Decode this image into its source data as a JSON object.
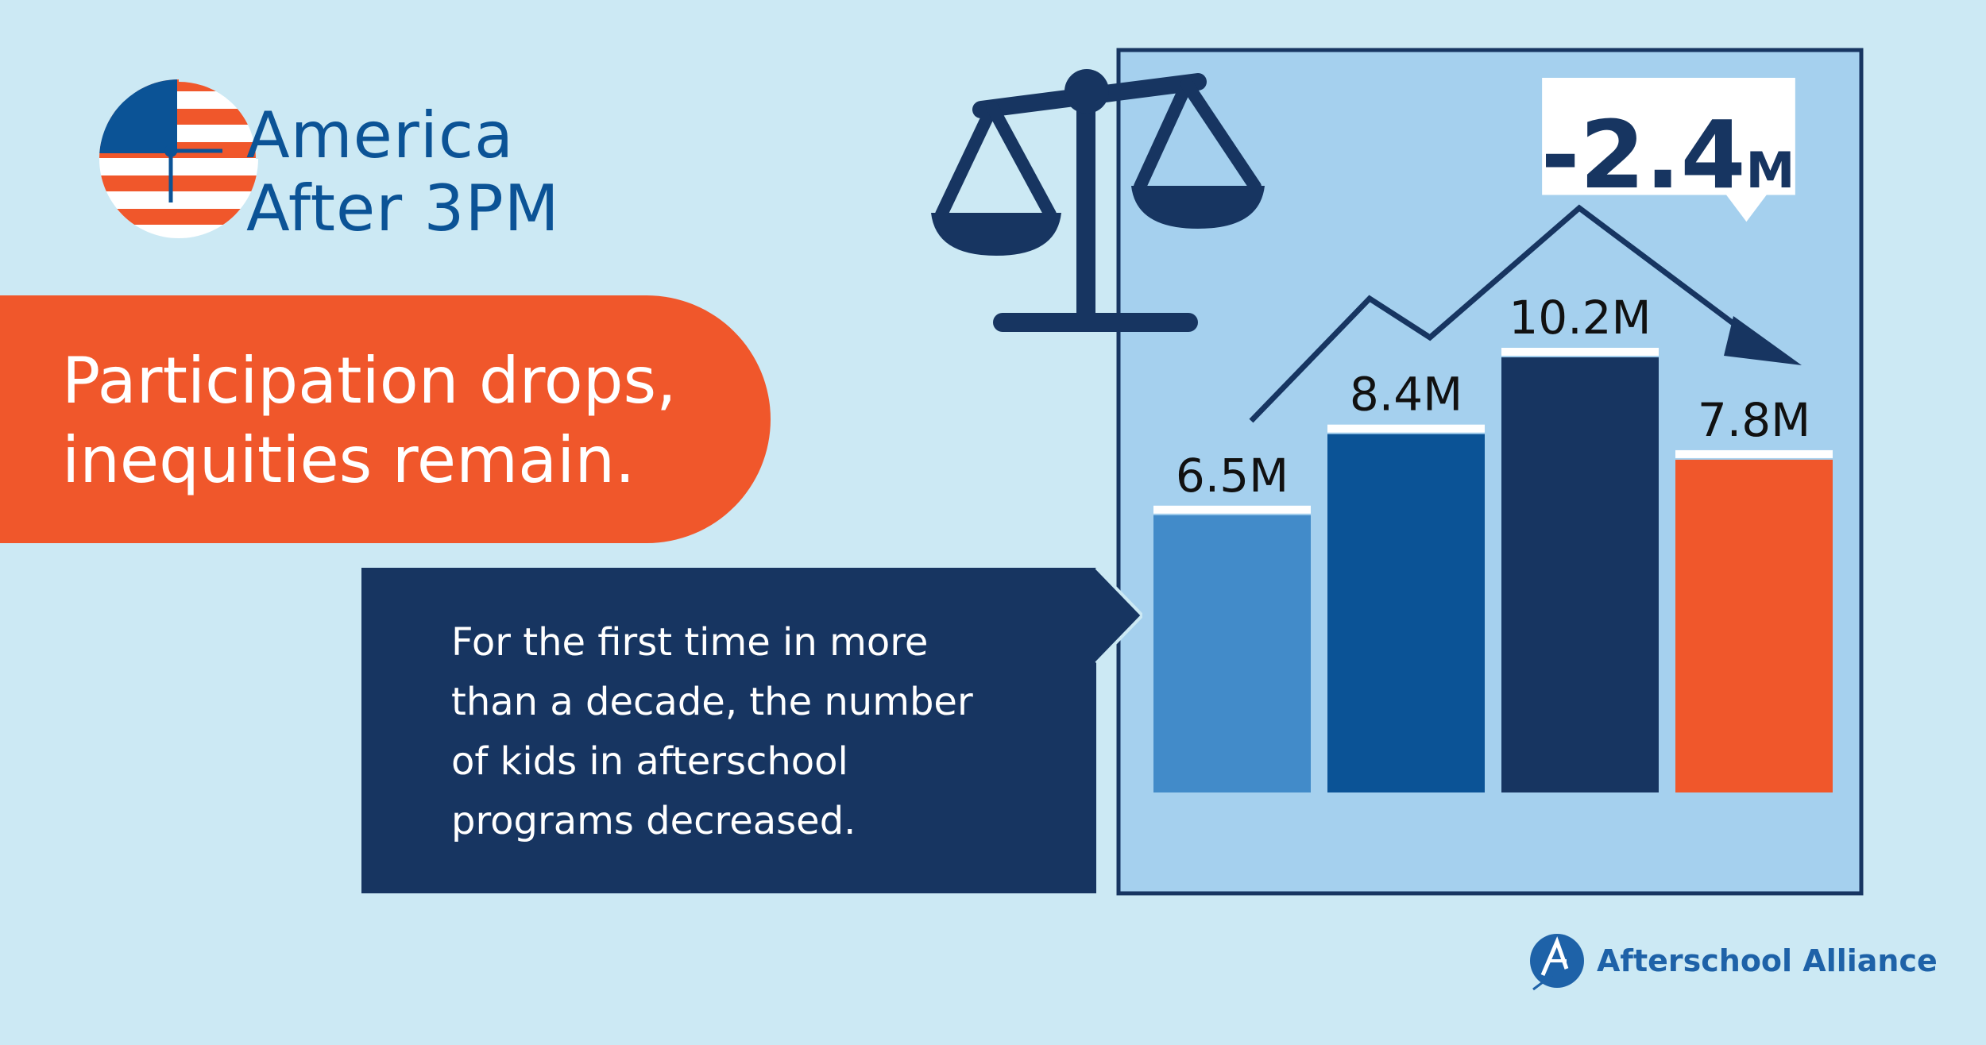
{
  "brand": {
    "line1": "America",
    "line2": "After 3PM",
    "colors": {
      "blue": "#0b5396",
      "orange": "#f0572b",
      "navy": "#173561"
    },
    "logo_icon": "flag-clock-icon"
  },
  "headline": {
    "line1": "Participation drops,",
    "line2": "inequities remain."
  },
  "callout": {
    "line1": "For the first time in more",
    "line2": "than a decade, the number",
    "line3": "of kids in afterschool",
    "line4": "programs decreased."
  },
  "badge": {
    "value": "-2.4",
    "unit": "M"
  },
  "chart_data": {
    "type": "bar",
    "values": [
      6.5,
      8.4,
      10.2,
      7.8
    ],
    "data_labels": [
      "6.5M",
      "8.4M",
      "10.2M",
      "7.8M"
    ],
    "colors": [
      "#428bc9",
      "#0b5396",
      "#173561",
      "#f0572b"
    ],
    "ylim": [
      0,
      10.2
    ],
    "change_label": "-2.4M",
    "decorations": [
      "scale-icon",
      "trend-arrow-icon"
    ]
  },
  "footer": {
    "org": "Afterschool Alliance",
    "icon": "afterschool-alliance-logo-icon"
  }
}
